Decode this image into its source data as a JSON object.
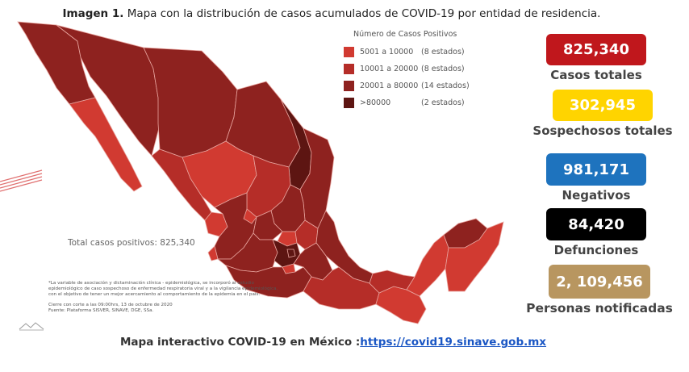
{
  "caption": {
    "prefix": "Imagen 1.",
    "text": "Mapa con la distribución de casos acumulados de COVID-19 por entidad de residencia."
  },
  "legend": {
    "title": "Número de Casos Positivos",
    "items": [
      {
        "range": "5001 a  10000",
        "count": "(8 estados)",
        "color": "#d13a31"
      },
      {
        "range": "10001 a  20000",
        "count": "(8 estados)",
        "color": "#b52d28"
      },
      {
        "range": "20001 a  80000",
        "count": "(14 estados)",
        "color": "#8e221f"
      },
      {
        "range": ">80000",
        "count": "(2 estados)",
        "color": "#5d1512"
      }
    ]
  },
  "map": {
    "total_label": "Total casos positivos: 825,340",
    "colors": {
      "light": "#d13a31",
      "mid": "#b52d28",
      "dark": "#8e221f",
      "darkest": "#5d1512",
      "border": "#e8a49e"
    }
  },
  "note": {
    "line1": "*La variable de asociación y dictaminación clínica - epidemiológica, se incorporó al estudio",
    "line2": "epidemiológico de caso sospechoso de enfermedad respiratoria viral y a la vigilancia epidemiológica,",
    "line3": "con el objetivo de tener un mejor acercamiento al comportamiento de la epidemia en el país.",
    "line4": "Cierre con corte a las 09:00hrs, 13 de octubre de 2020",
    "line5": "Fuente: Plataforma SISVER, SINAVE, DGE, SSa."
  },
  "stats": [
    {
      "value": "825,340",
      "label": "Casos totales",
      "bg": "#c0171c",
      "fg": "#ffffff"
    },
    {
      "value": "302,945",
      "label": "Sospechosos totales",
      "bg": "#ffd400",
      "fg": "#ffffff"
    },
    {
      "value": "981,171",
      "label": "Negativos",
      "bg": "#1e73be",
      "fg": "#ffffff"
    },
    {
      "value": "84,420",
      "label": "Defunciones",
      "bg": "#000000",
      "fg": "#ffffff"
    },
    {
      "value": "2, 109,456",
      "label": "Personas notificadas",
      "bg": "#b89660",
      "fg": "#ffffff"
    }
  ],
  "footer": {
    "text": "Mapa interactivo COVID-19 en México :",
    "link": "https://covid19.sinave.gob.mx"
  }
}
